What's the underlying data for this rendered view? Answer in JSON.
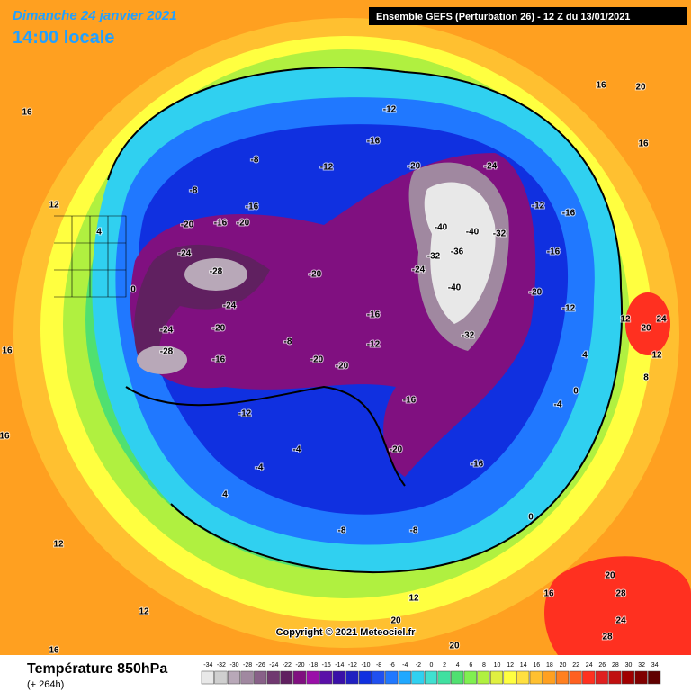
{
  "header": {
    "date": "Dimanche 24 janvier 2021",
    "time": "14:00 locale",
    "run": "Ensemble GEFS  (Perturbation 26)  -  12 Z du 13/01/2021"
  },
  "copyright": "Copyright © 2021 Meteociel.fr",
  "footer": {
    "title": "Température 850hPa",
    "lead": "(+ 264h)"
  },
  "colorbar": {
    "ticks": [
      -34,
      -32,
      -30,
      -28,
      -26,
      -24,
      -22,
      -20,
      -18,
      -16,
      -14,
      -12,
      -10,
      -8,
      -6,
      -4,
      -2,
      0,
      2,
      4,
      6,
      8,
      10,
      12,
      14,
      16,
      18,
      20,
      22,
      24,
      26,
      28,
      30,
      32,
      34
    ],
    "colors": [
      "#e8e8e8",
      "#cfcfcf",
      "#b8a8b8",
      "#a088a0",
      "#886088",
      "#703870",
      "#602060",
      "#801080",
      "#9a10a8",
      "#5a10a8",
      "#3a10a8",
      "#2020c0",
      "#1030e0",
      "#2050f0",
      "#2078ff",
      "#20a8ff",
      "#30d0f0",
      "#40e0d0",
      "#40e0a0",
      "#50e070",
      "#80f050",
      "#b0f040",
      "#e0f040",
      "#ffff40",
      "#ffe040",
      "#ffc030",
      "#ffa020",
      "#ff8020",
      "#ff6020",
      "#ff3020",
      "#e02020",
      "#c01010",
      "#a00000",
      "#800000",
      "#600000"
    ]
  },
  "contour_labels": [
    -40,
    -40,
    -36,
    -40,
    -32,
    -32,
    -24,
    -24,
    -32,
    -20,
    -28,
    -24,
    -24,
    -24,
    -28,
    -20,
    -16,
    -20,
    -16,
    -12,
    -16,
    -12,
    -8,
    -8,
    -20,
    -20,
    -16,
    -20,
    -20,
    -16,
    -12,
    -16,
    -20,
    -16,
    -12,
    -8,
    -4,
    -4,
    -8,
    -8,
    -12,
    -16,
    -16,
    -20,
    -12,
    0,
    4,
    12,
    16,
    16,
    20,
    16,
    24,
    20,
    12,
    20,
    28,
    24,
    28,
    12,
    16,
    20,
    20,
    12,
    16,
    12,
    4,
    0,
    -4,
    0,
    4,
    8,
    12,
    16,
    16
  ]
}
